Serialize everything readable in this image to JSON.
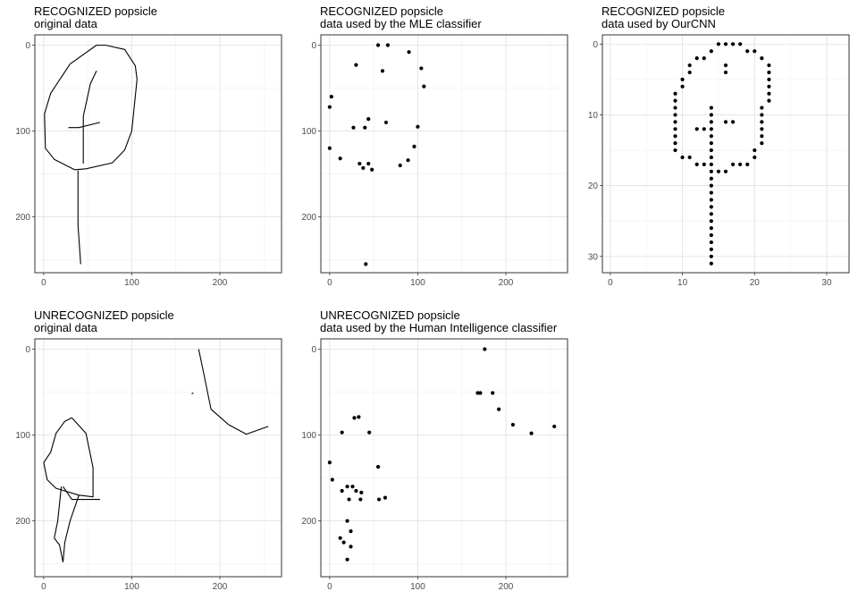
{
  "chart_data": [
    {
      "id": "p1",
      "type": "line",
      "title": "RECOGNIZED popsicle",
      "subtitle": "original data",
      "xlim": [
        -10,
        270
      ],
      "ylim": [
        -12,
        265
      ],
      "y_reversed": true,
      "x_ticks": [
        0,
        100,
        200
      ],
      "y_ticks": [
        0,
        100,
        200
      ],
      "grid": true,
      "strokes": [
        [
          [
            60,
            0
          ],
          [
            70,
            0
          ],
          [
            92,
            5
          ],
          [
            104,
            24
          ],
          [
            106,
            40
          ],
          [
            100,
            100
          ],
          [
            92,
            122
          ],
          [
            78,
            137
          ],
          [
            48,
            144
          ],
          [
            35,
            145
          ],
          [
            12,
            133
          ],
          [
            2,
            120
          ],
          [
            1,
            80
          ],
          [
            8,
            56
          ],
          [
            30,
            22
          ],
          [
            60,
            0
          ]
        ],
        [
          [
            60,
            30
          ],
          [
            53,
            45
          ],
          [
            45,
            83
          ],
          [
            45,
            100
          ],
          [
            45,
            138
          ]
        ],
        [
          [
            28,
            96
          ],
          [
            40,
            96
          ],
          [
            64,
            90
          ]
        ],
        [
          [
            39,
            146
          ],
          [
            39,
            210
          ],
          [
            42,
            255
          ]
        ]
      ]
    },
    {
      "id": "p2",
      "type": "scatter",
      "title": "RECOGNIZED popsicle",
      "subtitle": "data used by the MLE classifier",
      "xlim": [
        -10,
        270
      ],
      "ylim": [
        -12,
        265
      ],
      "y_reversed": true,
      "x_ticks": [
        0,
        100,
        200
      ],
      "y_ticks": [
        0,
        100,
        200
      ],
      "grid": true,
      "points": [
        [
          55,
          0
        ],
        [
          66,
          0
        ],
        [
          90,
          8
        ],
        [
          104,
          27
        ],
        [
          107,
          48
        ],
        [
          30,
          23
        ],
        [
          60,
          30
        ],
        [
          2,
          60
        ],
        [
          0,
          72
        ],
        [
          44,
          86
        ],
        [
          64,
          90
        ],
        [
          100,
          95
        ],
        [
          27,
          96
        ],
        [
          40,
          96
        ],
        [
          96,
          118
        ],
        [
          0,
          120
        ],
        [
          12,
          132
        ],
        [
          89,
          134
        ],
        [
          34,
          138
        ],
        [
          44,
          138
        ],
        [
          80,
          140
        ],
        [
          38,
          143
        ],
        [
          48,
          145
        ],
        [
          41,
          255
        ]
      ]
    },
    {
      "id": "p3",
      "type": "scatter",
      "title": "RECOGNIZED popsicle",
      "subtitle": "data used by OurCNN",
      "xlim": [
        -1.1,
        33.1
      ],
      "ylim": [
        -1.3,
        32.3
      ],
      "y_reversed": true,
      "x_ticks": [
        0,
        10,
        20,
        30
      ],
      "y_ticks": [
        0,
        10,
        20,
        30
      ],
      "grid": true,
      "points": [
        [
          15,
          0
        ],
        [
          16,
          0
        ],
        [
          17,
          0
        ],
        [
          18,
          0
        ],
        [
          14,
          1
        ],
        [
          19,
          1
        ],
        [
          20,
          1
        ],
        [
          12,
          2
        ],
        [
          13,
          2
        ],
        [
          21,
          2
        ],
        [
          11,
          3
        ],
        [
          16,
          3
        ],
        [
          22,
          3
        ],
        [
          11,
          4
        ],
        [
          16,
          4
        ],
        [
          22,
          4
        ],
        [
          10,
          5
        ],
        [
          22,
          5
        ],
        [
          10,
          6
        ],
        [
          22,
          6
        ],
        [
          9,
          7
        ],
        [
          22,
          7
        ],
        [
          9,
          8
        ],
        [
          22,
          8
        ],
        [
          9,
          9
        ],
        [
          14,
          9
        ],
        [
          21,
          9
        ],
        [
          9,
          10
        ],
        [
          14,
          10
        ],
        [
          21,
          10
        ],
        [
          9,
          11
        ],
        [
          14,
          11
        ],
        [
          16,
          11
        ],
        [
          17,
          11
        ],
        [
          21,
          11
        ],
        [
          9,
          12
        ],
        [
          12,
          12
        ],
        [
          13,
          12
        ],
        [
          14,
          12
        ],
        [
          21,
          12
        ],
        [
          9,
          13
        ],
        [
          14,
          13
        ],
        [
          21,
          13
        ],
        [
          9,
          14
        ],
        [
          14,
          14
        ],
        [
          21,
          14
        ],
        [
          9,
          15
        ],
        [
          14,
          15
        ],
        [
          20,
          15
        ],
        [
          10,
          16
        ],
        [
          11,
          16
        ],
        [
          14,
          16
        ],
        [
          20,
          16
        ],
        [
          12,
          17
        ],
        [
          13,
          17
        ],
        [
          14,
          17
        ],
        [
          17,
          17
        ],
        [
          18,
          17
        ],
        [
          19,
          17
        ],
        [
          14,
          18
        ],
        [
          15,
          18
        ],
        [
          16,
          18
        ],
        [
          14,
          19
        ],
        [
          14,
          20
        ],
        [
          14,
          21
        ],
        [
          14,
          22
        ],
        [
          14,
          23
        ],
        [
          14,
          24
        ],
        [
          14,
          25
        ],
        [
          14,
          26
        ],
        [
          14,
          27
        ],
        [
          14,
          28
        ],
        [
          14,
          29
        ],
        [
          14,
          30
        ],
        [
          14,
          31
        ]
      ]
    },
    {
      "id": "p4",
      "type": "line",
      "title": "UNRECOGNIZED popsicle",
      "subtitle": "original data",
      "xlim": [
        -10,
        270
      ],
      "ylim": [
        -12,
        265
      ],
      "y_reversed": true,
      "x_ticks": [
        0,
        100,
        200
      ],
      "y_ticks": [
        0,
        100,
        200
      ],
      "grid": true,
      "strokes": [
        [
          [
            176,
            0
          ],
          [
            182,
            30
          ],
          [
            190,
            70
          ],
          [
            210,
            88
          ],
          [
            230,
            99
          ],
          [
            255,
            90
          ]
        ],
        [
          [
            168,
            52
          ],
          [
            170,
            51
          ]
        ],
        [
          [
            32,
            80
          ],
          [
            24,
            84
          ],
          [
            14,
            98
          ],
          [
            8,
            120
          ],
          [
            0,
            132
          ],
          [
            4,
            152
          ],
          [
            14,
            162
          ],
          [
            40,
            170
          ],
          [
            56,
            172
          ],
          [
            56,
            138
          ],
          [
            48,
            98
          ],
          [
            32,
            80
          ]
        ],
        [
          [
            22,
            160
          ],
          [
            32,
            175
          ],
          [
            64,
            175
          ]
        ],
        [
          [
            20,
            160
          ],
          [
            16,
            200
          ],
          [
            12,
            220
          ],
          [
            18,
            228
          ],
          [
            22,
            248
          ]
        ],
        [
          [
            40,
            170
          ],
          [
            30,
            200
          ],
          [
            24,
            225
          ],
          [
            22,
            248
          ]
        ]
      ]
    },
    {
      "id": "p5",
      "type": "scatter",
      "title": "UNRECOGNIZED popsicle",
      "subtitle": "data used by the Human Intelligence classifier",
      "xlim": [
        -10,
        270
      ],
      "ylim": [
        -12,
        265
      ],
      "y_reversed": true,
      "x_ticks": [
        0,
        100,
        200
      ],
      "y_ticks": [
        0,
        100,
        200
      ],
      "grid": true,
      "points": [
        [
          176,
          0
        ],
        [
          168,
          51
        ],
        [
          171,
          51
        ],
        [
          185,
          51
        ],
        [
          192,
          70
        ],
        [
          208,
          88
        ],
        [
          229,
          98
        ],
        [
          255,
          90
        ],
        [
          28,
          80
        ],
        [
          33,
          79
        ],
        [
          14,
          97
        ],
        [
          45,
          97
        ],
        [
          0,
          132
        ],
        [
          55,
          137
        ],
        [
          3,
          152
        ],
        [
          14,
          165
        ],
        [
          20,
          160
        ],
        [
          26,
          160
        ],
        [
          22,
          175
        ],
        [
          30,
          165
        ],
        [
          36,
          167
        ],
        [
          35,
          175
        ],
        [
          56,
          175
        ],
        [
          63,
          173
        ],
        [
          20,
          200
        ],
        [
          24,
          212
        ],
        [
          12,
          220
        ],
        [
          16,
          225
        ],
        [
          24,
          230
        ],
        [
          20,
          245
        ]
      ]
    }
  ]
}
